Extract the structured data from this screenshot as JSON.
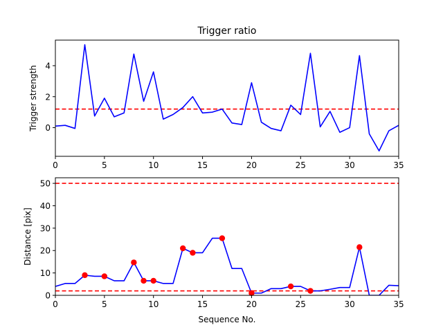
{
  "chart_data": [
    {
      "type": "line",
      "title": "Trigger ratio",
      "xlabel": "Sequence No.",
      "ylabel": "Trigger strength",
      "xlim": [
        0,
        35
      ],
      "ylim": [
        -1.85,
        5.65
      ],
      "xticks": [
        0,
        5,
        10,
        15,
        20,
        25,
        30,
        35
      ],
      "yticks": [
        0,
        2,
        4
      ],
      "grid": false,
      "series": [
        {
          "color": "#0000ff",
          "x": [
            0,
            1,
            2,
            3,
            4,
            5,
            6,
            7,
            8,
            9,
            10,
            11,
            12,
            13,
            14,
            15,
            16,
            17,
            18,
            19,
            20,
            21,
            22,
            23,
            24,
            25,
            26,
            27,
            28,
            29,
            30,
            31,
            32,
            33,
            34,
            35
          ],
          "y": [
            0.1,
            0.15,
            -0.05,
            5.35,
            0.75,
            1.9,
            0.7,
            0.95,
            4.75,
            1.7,
            3.6,
            0.55,
            0.85,
            1.3,
            2.0,
            0.95,
            1.0,
            1.2,
            0.3,
            0.2,
            2.9,
            0.35,
            -0.05,
            -0.2,
            1.45,
            0.85,
            4.8,
            0.05,
            1.05,
            -0.3,
            0.0,
            4.65,
            -0.4,
            -1.5,
            -0.2,
            0.15
          ]
        }
      ],
      "hlines": [
        {
          "y": 1.2,
          "color": "#ff0000",
          "style": "dashed"
        }
      ]
    },
    {
      "type": "line",
      "title": "",
      "xlabel": "Sequence No.",
      "ylabel": "Distance [pix]",
      "xlim": [
        0,
        35
      ],
      "ylim": [
        0,
        52.5
      ],
      "xticks": [
        0,
        5,
        10,
        15,
        20,
        25,
        30,
        35
      ],
      "yticks": [
        0,
        10,
        20,
        30,
        40,
        50
      ],
      "grid": false,
      "series": [
        {
          "color": "#0000ff",
          "x": [
            0,
            1,
            2,
            3,
            4,
            5,
            6,
            7,
            8,
            9,
            10,
            11,
            12,
            13,
            14,
            15,
            16,
            17,
            18,
            19,
            20,
            21,
            22,
            23,
            24,
            25,
            26,
            27,
            28,
            29,
            30,
            31,
            32,
            33,
            34,
            35
          ],
          "y": [
            4,
            5.3,
            5.3,
            9,
            8.5,
            8.5,
            6.5,
            6.5,
            14.7,
            6.5,
            6.5,
            5.3,
            5.3,
            21,
            19,
            19,
            25.5,
            25.5,
            12,
            12,
            1,
            1,
            3,
            3,
            4,
            4,
            2,
            2,
            2.7,
            3.5,
            3.5,
            21.5,
            0,
            0,
            4.5,
            4.3
          ]
        }
      ],
      "markers": {
        "color": "#ff0000",
        "x": [
          3,
          5,
          8,
          9,
          10,
          13,
          14,
          17,
          20,
          24,
          26,
          31
        ],
        "y": [
          9,
          8.5,
          14.7,
          6.5,
          6.5,
          21,
          19,
          25.5,
          1,
          4,
          2,
          21.5
        ]
      },
      "hlines": [
        {
          "y": 50,
          "color": "#ff0000",
          "style": "dashed"
        },
        {
          "y": 2,
          "color": "#ff0000",
          "style": "dashed"
        }
      ]
    }
  ]
}
